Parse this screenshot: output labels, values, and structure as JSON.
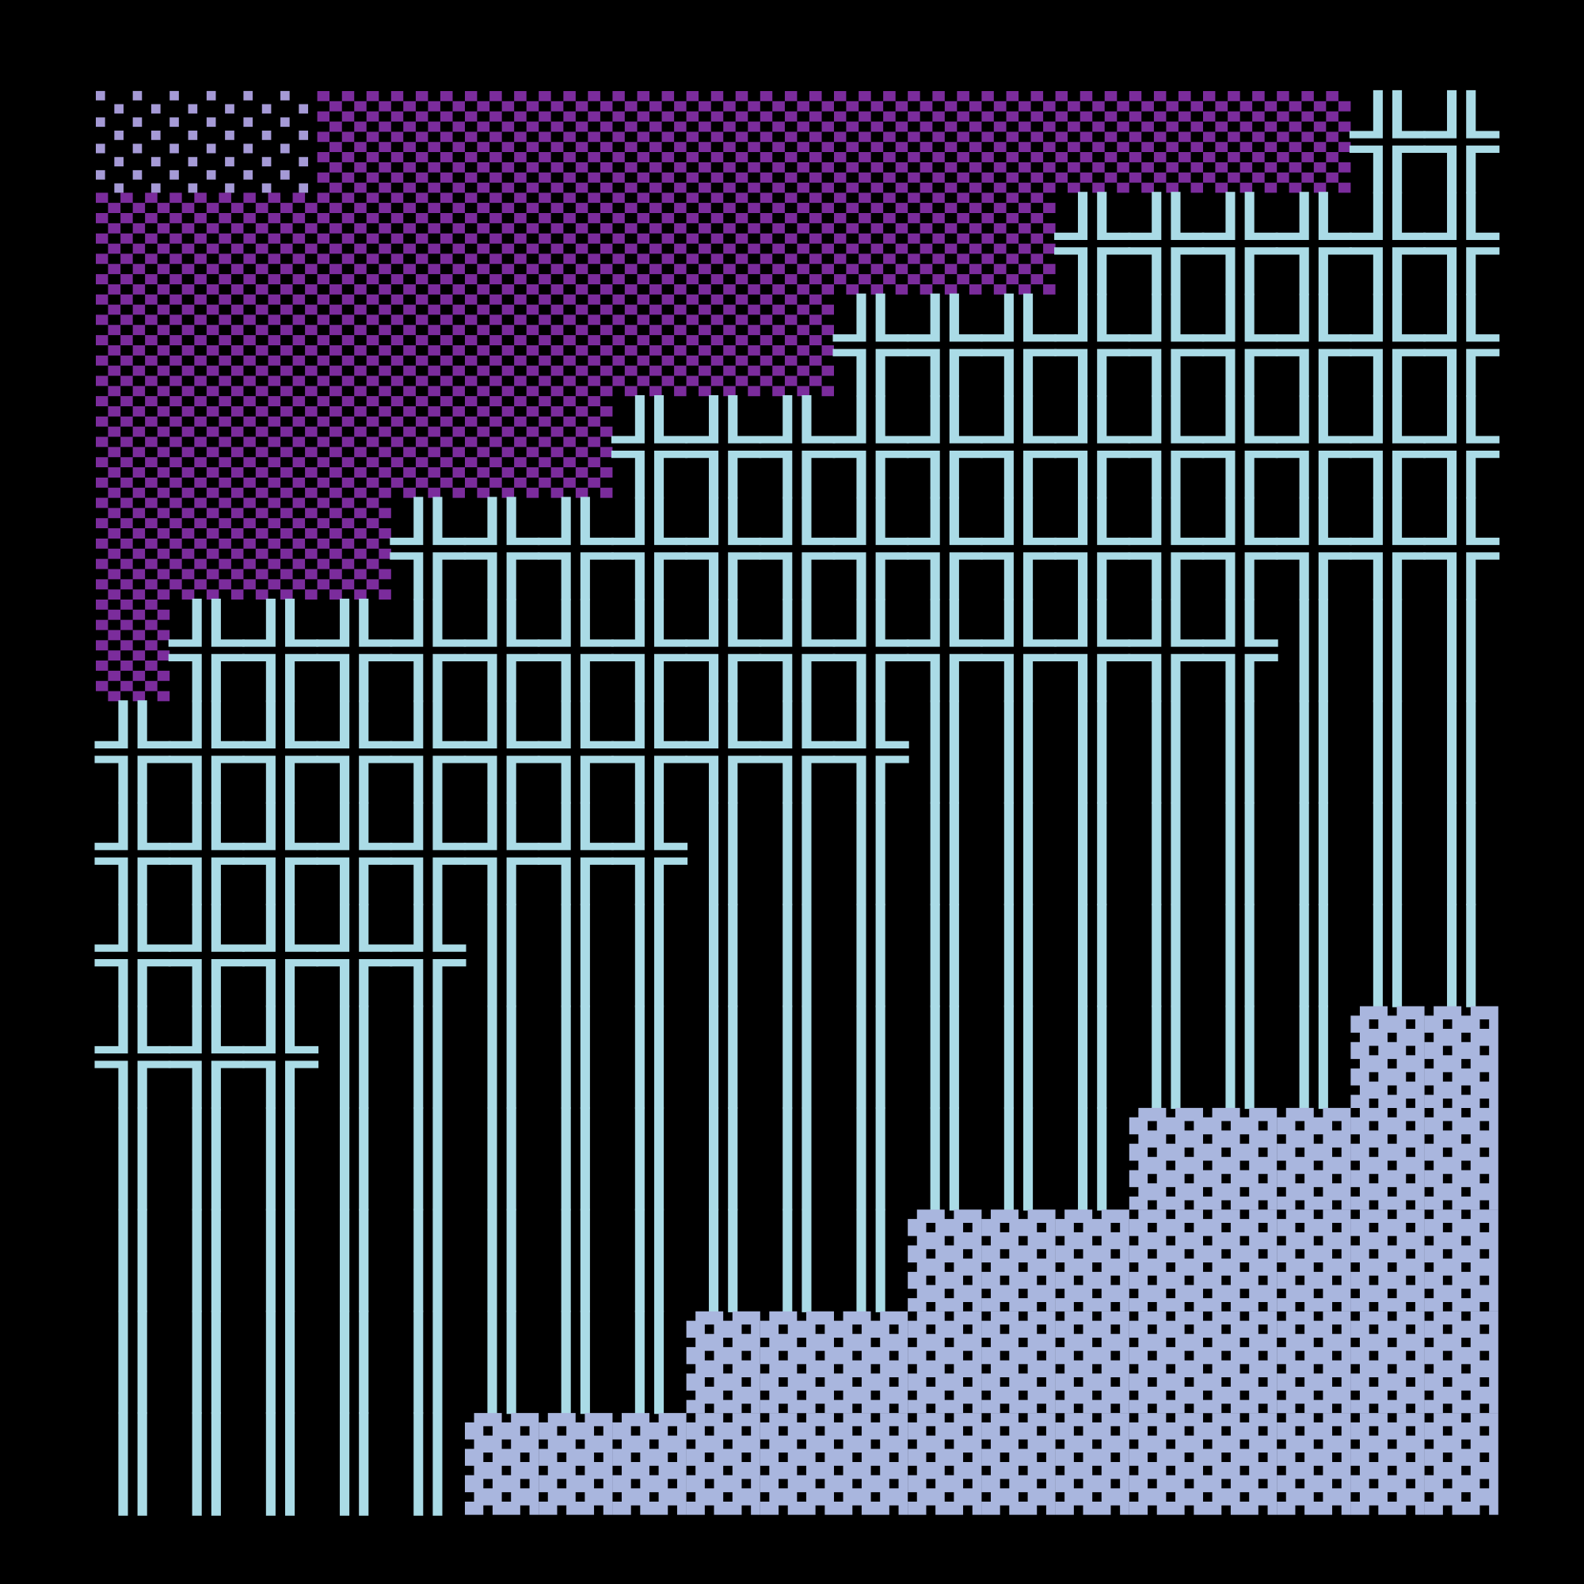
{
  "grid": {
    "colors": {
      "░": "#a59ad6",
      "▒": "#7b2c9c",
      "╬": "#aadbe6",
      "║": "#aadbe6",
      "▓": "#a9b6de"
    },
    "rows": [
      [
        "░",
        "░",
        "░",
        "▒",
        "▒",
        "▒",
        "▒",
        "▒",
        "▒",
        "▒",
        "▒",
        "▒",
        "▒",
        "▒",
        "▒",
        "▒",
        "▒",
        "╬",
        "╬"
      ],
      [
        "▒",
        "▒",
        "▒",
        "▒",
        "▒",
        "▒",
        "▒",
        "▒",
        "▒",
        "▒",
        "▒",
        "▒",
        "▒",
        "╬",
        "╬",
        "╬",
        "╬",
        "╬",
        "╬"
      ],
      [
        "▒",
        "▒",
        "▒",
        "▒",
        "▒",
        "▒",
        "▒",
        "▒",
        "▒",
        "▒",
        "╬",
        "╬",
        "╬",
        "╬",
        "╬",
        "╬",
        "╬",
        "╬",
        "╬"
      ],
      [
        "▒",
        "▒",
        "▒",
        "▒",
        "▒",
        "▒",
        "▒",
        "╬",
        "╬",
        "╬",
        "╬",
        "╬",
        "╬",
        "╬",
        "╬",
        "╬",
        "╬",
        "╬",
        "╬"
      ],
      [
        "▒",
        "▒",
        "▒",
        "▒",
        "╬",
        "╬",
        "╬",
        "╬",
        "╬",
        "╬",
        "╬",
        "╬",
        "╬",
        "╬",
        "╬",
        "╬",
        "╬",
        "╬",
        "╬"
      ],
      [
        "▒",
        "╬",
        "╬",
        "╬",
        "╬",
        "╬",
        "╬",
        "╬",
        "╬",
        "╬",
        "╬",
        "╬",
        "╬",
        "╬",
        "╬",
        "╬",
        "║",
        "║",
        "║"
      ],
      [
        "╬",
        "╬",
        "╬",
        "╬",
        "╬",
        "╬",
        "╬",
        "╬",
        "╬",
        "╬",
        "╬",
        "║",
        "║",
        "║",
        "║",
        "║",
        "║",
        "║",
        "║"
      ],
      [
        "╬",
        "╬",
        "╬",
        "╬",
        "╬",
        "╬",
        "╬",
        "╬",
        "║",
        "║",
        "║",
        "║",
        "║",
        "║",
        "║",
        "║",
        "║",
        "║",
        "║"
      ],
      [
        "╬",
        "╬",
        "╬",
        "╬",
        "╬",
        "║",
        "║",
        "║",
        "║",
        "║",
        "║",
        "║",
        "║",
        "║",
        "║",
        "║",
        "║",
        "║",
        "║"
      ],
      [
        "╬",
        "╬",
        "╬",
        "║",
        "║",
        "║",
        "║",
        "║",
        "║",
        "║",
        "║",
        "║",
        "║",
        "║",
        "║",
        "║",
        "║",
        "▓",
        "▓"
      ],
      [
        "║",
        "║",
        "║",
        "║",
        "║",
        "║",
        "║",
        "║",
        "║",
        "║",
        "║",
        "║",
        "║",
        "║",
        "▓",
        "▓",
        "▓",
        "▓",
        "▓"
      ],
      [
        "║",
        "║",
        "║",
        "║",
        "║",
        "║",
        "║",
        "║",
        "║",
        "║",
        "║",
        "▓",
        "▓",
        "▓",
        "▓",
        "▓",
        "▓",
        "▓",
        "▓"
      ],
      [
        "║",
        "║",
        "║",
        "║",
        "║",
        "║",
        "║",
        "║",
        "▓",
        "▓",
        "▓",
        "▓",
        "▓",
        "▓",
        "▓",
        "▓",
        "▓",
        "▓",
        "▓"
      ],
      [
        "║",
        "║",
        "║",
        "║",
        "║",
        "▓",
        "▓",
        "▓",
        "▓",
        "▓",
        "▓",
        "▓",
        "▓",
        "▓",
        "▓",
        "▓",
        "▓",
        "▓",
        "▓"
      ]
    ]
  }
}
